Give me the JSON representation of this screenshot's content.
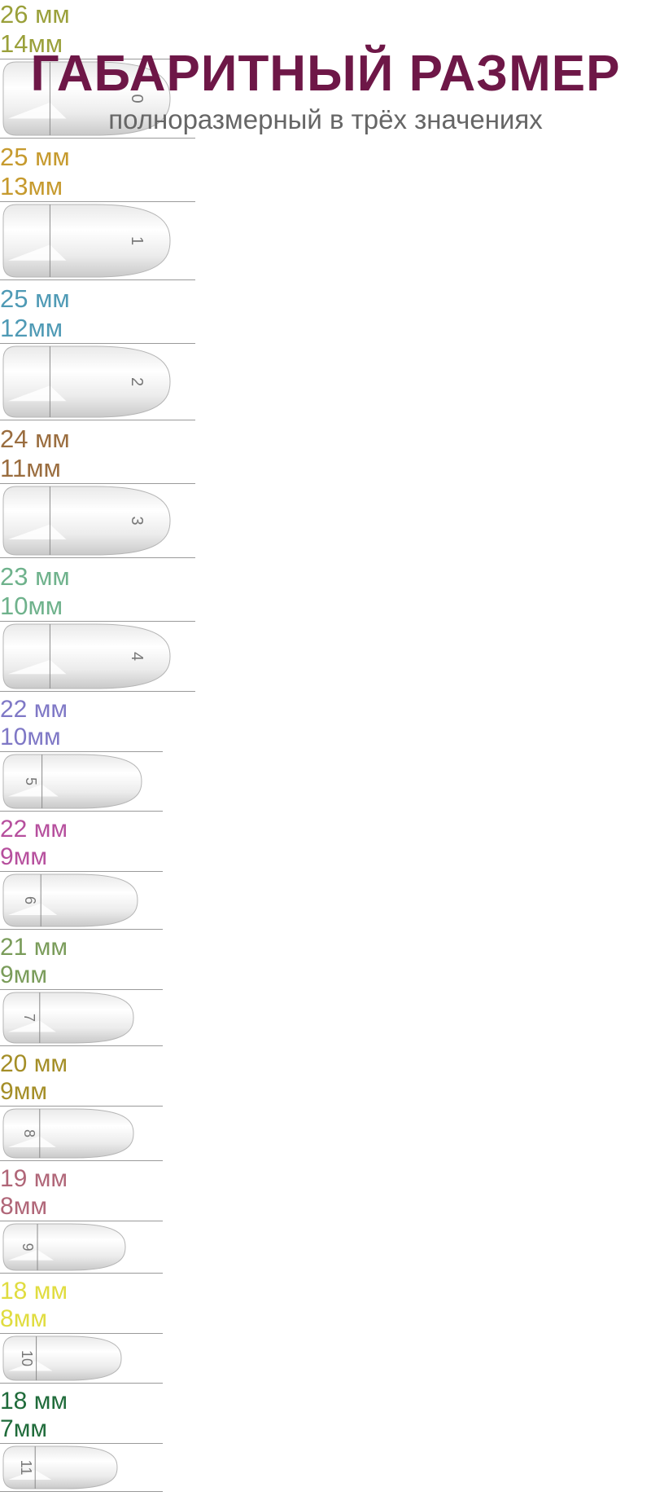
{
  "header": {
    "title": "ГАБАРИТНЫЙ РАЗМЕР",
    "subtitle": "полноразмерный в трёх значениях"
  },
  "tips": [
    {
      "number": "0",
      "length": "26 мм",
      "width": "14",
      "unit": "мм",
      "color": "#9aa03a"
    },
    {
      "number": "1",
      "length": "25 мм",
      "width": "13",
      "unit": "мм",
      "color": "#c69a2e"
    },
    {
      "number": "2",
      "length": "25 мм",
      "width": "12",
      "unit": "мм",
      "color": "#4f9ab5"
    },
    {
      "number": "3",
      "length": "24 мм",
      "width": "11",
      "unit": "мм",
      "color": "#9a6d3f"
    },
    {
      "number": "4",
      "length": "23 мм",
      "width": "10",
      "unit": "мм",
      "color": "#6fb28c"
    },
    {
      "number": "5",
      "length": "22 мм",
      "width": "10",
      "unit": "мм",
      "color": "#7f78c6"
    },
    {
      "number": "6",
      "length": "22 мм",
      "width": "9",
      "unit": "мм",
      "color": "#b64f9d"
    },
    {
      "number": "7",
      "length": "21 мм",
      "width": "9",
      "unit": "мм",
      "color": "#7a9c5a"
    },
    {
      "number": "8",
      "length": "20 мм",
      "width": "9",
      "unit": "мм",
      "color": "#a48e27"
    },
    {
      "number": "9",
      "length": "19 мм",
      "width": "8",
      "unit": "мм",
      "color": "#b06678"
    },
    {
      "number": "10",
      "length": "18 мм",
      "width": "8",
      "unit": "мм",
      "color": "#e0dc3f"
    },
    {
      "number": "11",
      "length": "18 мм",
      "width": "7",
      "unit": "мм",
      "color": "#1f6b3a"
    }
  ]
}
